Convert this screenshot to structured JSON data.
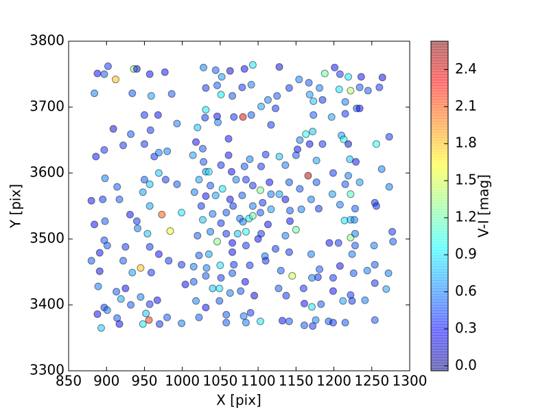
{
  "chart_data": {
    "type": "scatter",
    "xlabel": "X [pix]",
    "ylabel": "Y [pix]",
    "xlim": [
      850,
      1300
    ],
    "xticks": [
      850,
      900,
      950,
      1000,
      1050,
      1100,
      1150,
      1200,
      1250,
      1300
    ],
    "ylim": [
      3300,
      3800
    ],
    "yticks": [
      3300,
      3400,
      3500,
      3600,
      3700,
      3800
    ],
    "colormap": "jet",
    "alpha": 0.5,
    "colorbar": {
      "label": "V-I [mag]",
      "clim": [
        -0.04,
        2.63
      ],
      "ticks": [
        {
          "value": 0,
          "label": "0.0"
        },
        0.3,
        0.6,
        0.9,
        1.2,
        1.5,
        1.8,
        2.1,
        2.4
      ]
    },
    "x": [
      902,
      888,
      897,
      912,
      884,
      936,
      940,
      957,
      977,
      934,
      959,
      986,
      1028,
      950,
      968,
      993,
      909,
      932,
      958,
      897,
      922,
      886,
      950,
      963,
      969,
      980,
      898,
      914,
      950,
      969,
      978,
      993,
      957,
      880,
      895,
      917,
      948,
      957,
      884,
      898,
      931,
      940,
      973,
      984,
      999,
      897,
      901,
      925,
      954,
      957,
      941,
      891,
      880,
      922,
      969,
      982,
      999,
      891,
      945,
      959,
      934,
      889,
      913,
      925,
      919,
      945,
      967,
      897,
      932,
      957,
      888,
      901,
      952,
      914,
      980,
      956,
      948,
      970,
      893,
      999,
      917,
      1044,
      1052,
      1063,
      1082,
      1093,
      1091,
      1128,
      1031,
      1046,
      1051,
      1066,
      1079,
      1113,
      1125,
      1104,
      1031,
      1046,
      1068,
      1080,
      1091,
      1030,
      1123,
      1020,
      1047,
      1018,
      1027,
      1061,
      1117,
      1014,
      1028,
      1061,
      1089,
      1110,
      1128,
      1031,
      1035,
      1051,
      1065,
      1082,
      1104,
      1136,
      1022,
      1037,
      1053,
      1071,
      1084,
      1093,
      1115,
      1141,
      1016,
      1031,
      1044,
      1063,
      1079,
      1103,
      1117,
      1128,
      1025,
      1067,
      1093,
      1106,
      1040,
      1058,
      1076,
      1088,
      1103,
      1117,
      1142,
      1027,
      1051,
      1080,
      1093,
      1113,
      1142,
      1020,
      1037,
      1058,
      1073,
      1084,
      1104,
      1150,
      1046,
      1066,
      1084,
      1100,
      1123,
      1022,
      1035,
      1066,
      1109,
      1141,
      1015,
      1032,
      1050,
      1068,
      1089,
      1110,
      1130,
      1145,
      1015,
      1031,
      1051,
      1066,
      1083,
      1127,
      1004,
      1040,
      1049,
      1063,
      1077,
      1095,
      1137,
      1018,
      1049,
      1031,
      1058,
      1081,
      1090,
      1022,
      1058,
      1084,
      1103,
      1132,
      1141,
      1188,
      1201,
      1208,
      1219,
      1236,
      1264,
      1167,
      1181,
      1207,
      1222,
      1234,
      1245,
      1260,
      1141,
      1154,
      1168,
      1185,
      1215,
      1173,
      1230,
      1234,
      1173,
      1197,
      1215,
      1172,
      1163,
      1155,
      1210,
      1213,
      1219,
      1273,
      1152,
      1168,
      1185,
      1256,
      1150,
      1177,
      1221,
      1229,
      1166,
      1199,
      1219,
      1263,
      1177,
      1215,
      1234,
      1155,
      1273,
      1136,
      1170,
      1198,
      1222,
      1254,
      1256,
      1157,
      1208,
      1180,
      1228,
      1214,
      1222,
      1227,
      1277,
      1278,
      1136,
      1222,
      1194,
      1206,
      1228,
      1228,
      1170,
      1224,
      1253,
      1181,
      1208,
      1254,
      1179,
      1226,
      1244,
      1272,
      1160,
      1171,
      1199,
      1254,
      1269,
      1199,
      1222,
      1241,
      1224,
      1161,
      1171,
      1183,
      1212,
      1161,
      1172,
      1176,
      1193,
      1199,
      1215,
      1254
    ],
    "values": [
      3762,
      3751,
      3750,
      3742,
      3721,
      3758,
      3758,
      3750,
      3753,
      3721,
      3717,
      3720,
      3760,
      3688,
      3688,
      3675,
      3667,
      3659,
      3665,
      3635,
      3642,
      3625,
      3644,
      3625,
      3631,
      3633,
      3592,
      3579,
      3590,
      3600,
      3590,
      3583,
      3583,
      3558,
      3560,
      3560,
      3571,
      3550,
      3522,
      3527,
      3537,
      3527,
      3537,
      3512,
      3540,
      3498,
      3490,
      3488,
      3508,
      3488,
      3516,
      3479,
      3467,
      3467,
      3477,
      3467,
      3461,
      3451,
      3456,
      3449,
      3449,
      3428,
      3420,
      3425,
      3409,
      3412,
      3407,
      3396,
      3400,
      3401,
      3386,
      3392,
      3387,
      3380,
      3381,
      3377,
      3371,
      3371,
      3365,
      3372,
      3371,
      3756,
      3746,
      3755,
      3758,
      3764,
      3734,
      3761,
      3729,
      3733,
      3719,
      3717,
      3730,
      3711,
      3717,
      3701,
      3696,
      3686,
      3685,
      3685,
      3688,
      3684,
      3698,
      3669,
      3677,
      3647,
      3637,
      3652,
      3673,
      3627,
      3617,
      3627,
      3621,
      3628,
      3625,
      3602,
      3602,
      3612,
      3602,
      3610,
      3610,
      3612,
      3590,
      3581,
      3576,
      3590,
      3590,
      3581,
      3586,
      3586,
      3571,
      3565,
      3566,
      3560,
      3566,
      3574,
      3568,
      3568,
      3550,
      3550,
      3550,
      3555,
      3538,
      3540,
      3531,
      3531,
      3540,
      3545,
      3543,
      3529,
      3524,
      3526,
      3535,
      3522,
      3527,
      3505,
      3511,
      3508,
      3508,
      3511,
      3508,
      3514,
      3496,
      3494,
      3490,
      3500,
      3485,
      3475,
      3477,
      3480,
      3474,
      3480,
      3458,
      3456,
      3460,
      3461,
      3460,
      3467,
      3452,
      3444,
      3435,
      3444,
      3441,
      3448,
      3435,
      3425,
      3431,
      3425,
      3425,
      3418,
      3421,
      3414,
      3414,
      3406,
      3406,
      3396,
      3385,
      3383,
      3388,
      3381,
      3373,
      3373,
      3375,
      3376,
      3375,
      3751,
      3760,
      3750,
      3746,
      3746,
      3745,
      3737,
      3729,
      3727,
      3725,
      3730,
      3725,
      3730,
      3729,
      3742,
      3719,
      3711,
      3708,
      3709,
      3698,
      3698,
      3688,
      3685,
      3690,
      3663,
      3659,
      3650,
      3657,
      3651,
      3644,
      3655,
      3636,
      3644,
      3644,
      3644,
      3627,
      3619,
      3621,
      3617,
      3596,
      3600,
      3596,
      3606,
      3586,
      3583,
      3586,
      3576,
      3579,
      3560,
      3560,
      3568,
      3568,
      3555,
      3550,
      3545,
      3552,
      3546,
      3546,
      3528,
      3529,
      3529,
      3511,
      3496,
      3505,
      3502,
      3494,
      3494,
      3508,
      3490,
      3477,
      3477,
      3490,
      3454,
      3459,
      3461,
      3442,
      3448,
      3452,
      3448,
      3425,
      3441,
      3441,
      3433,
      3424,
      3421,
      3415,
      3407,
      3406,
      3402,
      3397,
      3401,
      3406,
      3369,
      3368,
      3377,
      3375,
      3373,
      3373,
      3377
    ],
    "color_values": [
      0.4,
      0.3,
      0.5,
      1.8,
      0.6,
      1.3,
      0.2,
      0.3,
      0.3,
      0.5,
      0.7,
      0.5,
      0.6,
      0.4,
      0.3,
      0.6,
      0.2,
      0.5,
      0.4,
      0.4,
      0.4,
      0.3,
      0.4,
      0.4,
      0.6,
      0.6,
      0.6,
      0.5,
      0.5,
      0.8,
      0.4,
      0.5,
      0.8,
      0.3,
      0.4,
      0.5,
      0.7,
      0.7,
      0.3,
      0.5,
      0.3,
      0.4,
      2.1,
      1.6,
      0.9,
      0.5,
      0.5,
      0.4,
      0.8,
      0.4,
      0.6,
      0.3,
      0.5,
      0.5,
      0.3,
      0.4,
      0.4,
      0.2,
      1.8,
      0.4,
      0.7,
      0.6,
      0.5,
      0.3,
      0.7,
      0.6,
      0.3,
      0.4,
      0.5,
      0.4,
      0.3,
      0.6,
      0.8,
      0.5,
      0.5,
      2.2,
      0.9,
      0.4,
      0.8,
      0.6,
      0.3,
      0.5,
      0.7,
      0.2,
      0.3,
      0.9,
      0.6,
      0.2,
      0.4,
      0.5,
      0.9,
      0.5,
      0.4,
      0.6,
      0.5,
      0.7,
      0.9,
      0.3,
      0.4,
      2.4,
      0.5,
      0.4,
      0.4,
      0.8,
      0.6,
      0.3,
      0.5,
      0.3,
      0.4,
      0.7,
      0.5,
      0.3,
      0.6,
      0.4,
      0.8,
      0.7,
      0.9,
      0.4,
      0.3,
      0.5,
      0.4,
      0.6,
      0.7,
      0.5,
      0.9,
      0.6,
      0.4,
      0.4,
      0.3,
      0.5,
      0.6,
      0.3,
      0.7,
      0.3,
      0.5,
      1.3,
      0.6,
      0.7,
      0.4,
      0.4,
      0.6,
      0.4,
      0.6,
      0.5,
      0.6,
      0.9,
      0.5,
      0.7,
      0.5,
      0.8,
      0.4,
      0.6,
      1.2,
      0.3,
      0.3,
      0.5,
      0.6,
      0.4,
      0.8,
      1.0,
      0.4,
      1.2,
      1.3,
      0.3,
      0.4,
      0.3,
      0.4,
      0.5,
      0.7,
      0.3,
      0.6,
      0.4,
      0.6,
      0.6,
      0.9,
      0.4,
      0.4,
      0.4,
      0.5,
      1.5,
      0.5,
      0.5,
      0.4,
      0.5,
      0.3,
      0.5,
      0.3,
      0.8,
      0.9,
      0.6,
      0.5,
      0.2,
      0.4,
      0.6,
      0.5,
      0.3,
      0.5,
      0.6,
      0.4,
      0.5,
      0.5,
      0.6,
      0.9,
      0.3,
      0.5,
      1.2,
      0.3,
      0.4,
      0.9,
      0.3,
      0.2,
      0.5,
      0.6,
      0.9,
      1.4,
      0.5,
      0.5,
      0.4,
      0.4,
      0.6,
      0.7,
      0.4,
      0.6,
      0.8,
      0.5,
      0.3,
      0.5,
      0.7,
      0.4,
      0.8,
      1.0,
      0.6,
      0.7,
      1.0,
      0.2,
      0.4,
      0.3,
      0.3,
      0.4,
      1.0,
      0.5,
      0.7,
      0.8,
      0.3,
      2.5,
      0.4,
      0.6,
      0.6,
      0.5,
      0.5,
      0.7,
      0.5,
      0.6,
      0.3,
      0.6,
      0.7,
      1.1,
      0.4,
      0.4,
      0.6,
      0.6,
      0.4,
      0.5,
      0.9,
      0.8,
      0.6,
      0.4,
      0.5,
      0.6,
      1.3,
      0.3,
      0.4,
      0.6,
      0.5,
      0.6,
      0.6,
      0.6,
      0.5,
      0.3,
      0.5,
      0.4,
      0.5,
      0.6,
      0.6,
      0.4,
      0.6,
      0.4,
      0.4,
      0.7,
      0.3,
      0.4,
      0.6,
      0.4,
      0.3,
      0.9,
      0.5,
      0.7,
      0.5,
      0.4,
      0.6,
      0.5,
      0.4,
      0.5,
      0.5
    ]
  }
}
